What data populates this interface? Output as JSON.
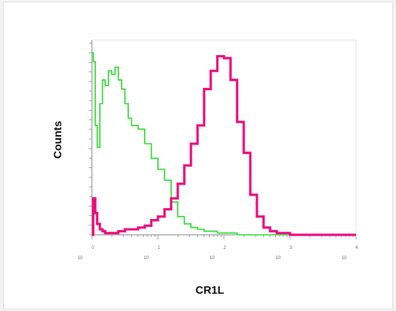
{
  "chart_data": {
    "type": "line",
    "title": "",
    "xlabel": "CR1L",
    "ylabel": "Counts",
    "x_scale": "log",
    "xlim": [
      0.0,
      4.0
    ],
    "ylim": [
      0,
      100
    ],
    "x_tick_labels": [
      {
        "base": "10",
        "exp": "0",
        "value": 0
      },
      {
        "base": "10",
        "exp": "1",
        "value": 1
      },
      {
        "base": "10",
        "exp": "2",
        "value": 2
      },
      {
        "base": "10",
        "exp": "3",
        "value": 3
      },
      {
        "base": "10",
        "exp": "4",
        "value": 4
      }
    ],
    "grid": false,
    "colors": {
      "control": "#33dd33",
      "sample": "#ee0a7e",
      "axis": "#888888"
    },
    "series": [
      {
        "x": [
          0.0,
          0.02,
          0.05,
          0.08,
          0.12,
          0.16,
          0.2,
          0.25,
          0.3,
          0.35,
          0.4,
          0.45,
          0.5,
          0.55,
          0.6,
          0.7,
          0.8,
          0.9,
          1.0,
          1.1,
          1.2,
          1.3,
          1.4,
          1.5,
          1.6,
          1.7,
          1.8,
          1.9,
          2.0,
          2.2,
          2.5,
          3.0,
          3.5,
          4.0
        ],
        "values": [
          100,
          95,
          60,
          48,
          72,
          85,
          82,
          90,
          88,
          92,
          85,
          80,
          72,
          64,
          60,
          58,
          50,
          42,
          36,
          30,
          18,
          10,
          6,
          4,
          3,
          2,
          2,
          1,
          1,
          0,
          0,
          0,
          0,
          0
        ],
        "color": "#33dd33"
      },
      {
        "x": [
          0.0,
          0.02,
          0.05,
          0.08,
          0.12,
          0.16,
          0.2,
          0.3,
          0.4,
          0.5,
          0.6,
          0.7,
          0.8,
          0.9,
          1.0,
          1.1,
          1.2,
          1.3,
          1.4,
          1.5,
          1.6,
          1.7,
          1.8,
          1.9,
          2.0,
          2.1,
          2.2,
          2.3,
          2.4,
          2.5,
          2.6,
          2.7,
          2.8,
          3.0,
          3.5,
          4.0
        ],
        "values": [
          0,
          20,
          12,
          6,
          3,
          2,
          1,
          1,
          2,
          3,
          3,
          4,
          5,
          8,
          10,
          14,
          20,
          28,
          38,
          50,
          60,
          80,
          90,
          98,
          97,
          85,
          62,
          45,
          22,
          10,
          4,
          2,
          1,
          0,
          0,
          0
        ],
        "color": "#ee0a7e"
      }
    ]
  }
}
